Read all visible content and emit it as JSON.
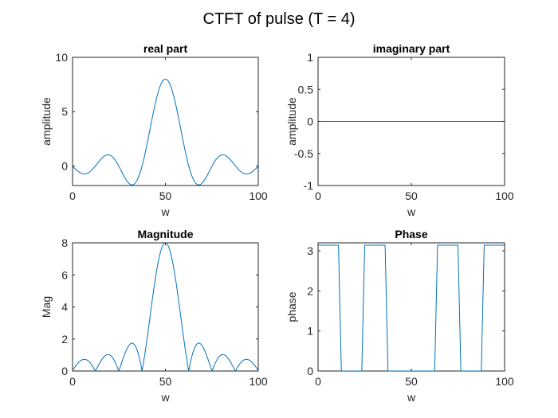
{
  "figure_title": "CTFT of pulse (T = 4)",
  "colors": {
    "line": "#0072bd",
    "axes": "#262626"
  },
  "chart_data": [
    {
      "type": "line",
      "id": "real",
      "title": "real part",
      "xlabel": "w",
      "ylabel": "amplitude",
      "xlim": [
        0,
        100
      ],
      "ylim": [
        -1.8,
        10
      ],
      "xticks": [
        0,
        50,
        100
      ],
      "yticks": [
        0,
        5,
        10
      ],
      "xtick_labels": [
        "0",
        "50",
        "100"
      ],
      "ytick_labels": [
        "0",
        "5",
        "10"
      ],
      "function": "real"
    },
    {
      "type": "line",
      "id": "imag",
      "title": "imaginary part",
      "xlabel": "w",
      "ylabel": "amplitude",
      "xlim": [
        0,
        100
      ],
      "ylim": [
        -1,
        1
      ],
      "xticks": [
        0,
        50,
        100
      ],
      "yticks": [
        -1,
        -0.5,
        0,
        0.5,
        1
      ],
      "xtick_labels": [
        "0",
        "50",
        "100"
      ],
      "ytick_labels": [
        "-1",
        "-0.5",
        "0",
        "0.5",
        "1"
      ],
      "function": "imag"
    },
    {
      "type": "line",
      "id": "mag",
      "title": "Magnitude",
      "xlabel": "w",
      "ylabel": "Mag",
      "xlim": [
        0,
        100
      ],
      "ylim": [
        0,
        8
      ],
      "xticks": [
        0,
        50,
        100
      ],
      "yticks": [
        0,
        2,
        4,
        6,
        8
      ],
      "xtick_labels": [
        "0",
        "50",
        "100"
      ],
      "ytick_labels": [
        "0",
        "2",
        "4",
        "6",
        "8"
      ],
      "function": "mag"
    },
    {
      "type": "line",
      "id": "phase",
      "title": "Phase",
      "xlabel": "w",
      "ylabel": "phase",
      "xlim": [
        0,
        100
      ],
      "ylim": [
        0,
        3.2
      ],
      "xticks": [
        0,
        50,
        100
      ],
      "yticks": [
        0,
        1,
        2,
        3
      ],
      "xtick_labels": [
        "0",
        "50",
        "100"
      ],
      "ytick_labels": [
        "0",
        "1",
        "2",
        "3"
      ],
      "function": "phase"
    }
  ]
}
